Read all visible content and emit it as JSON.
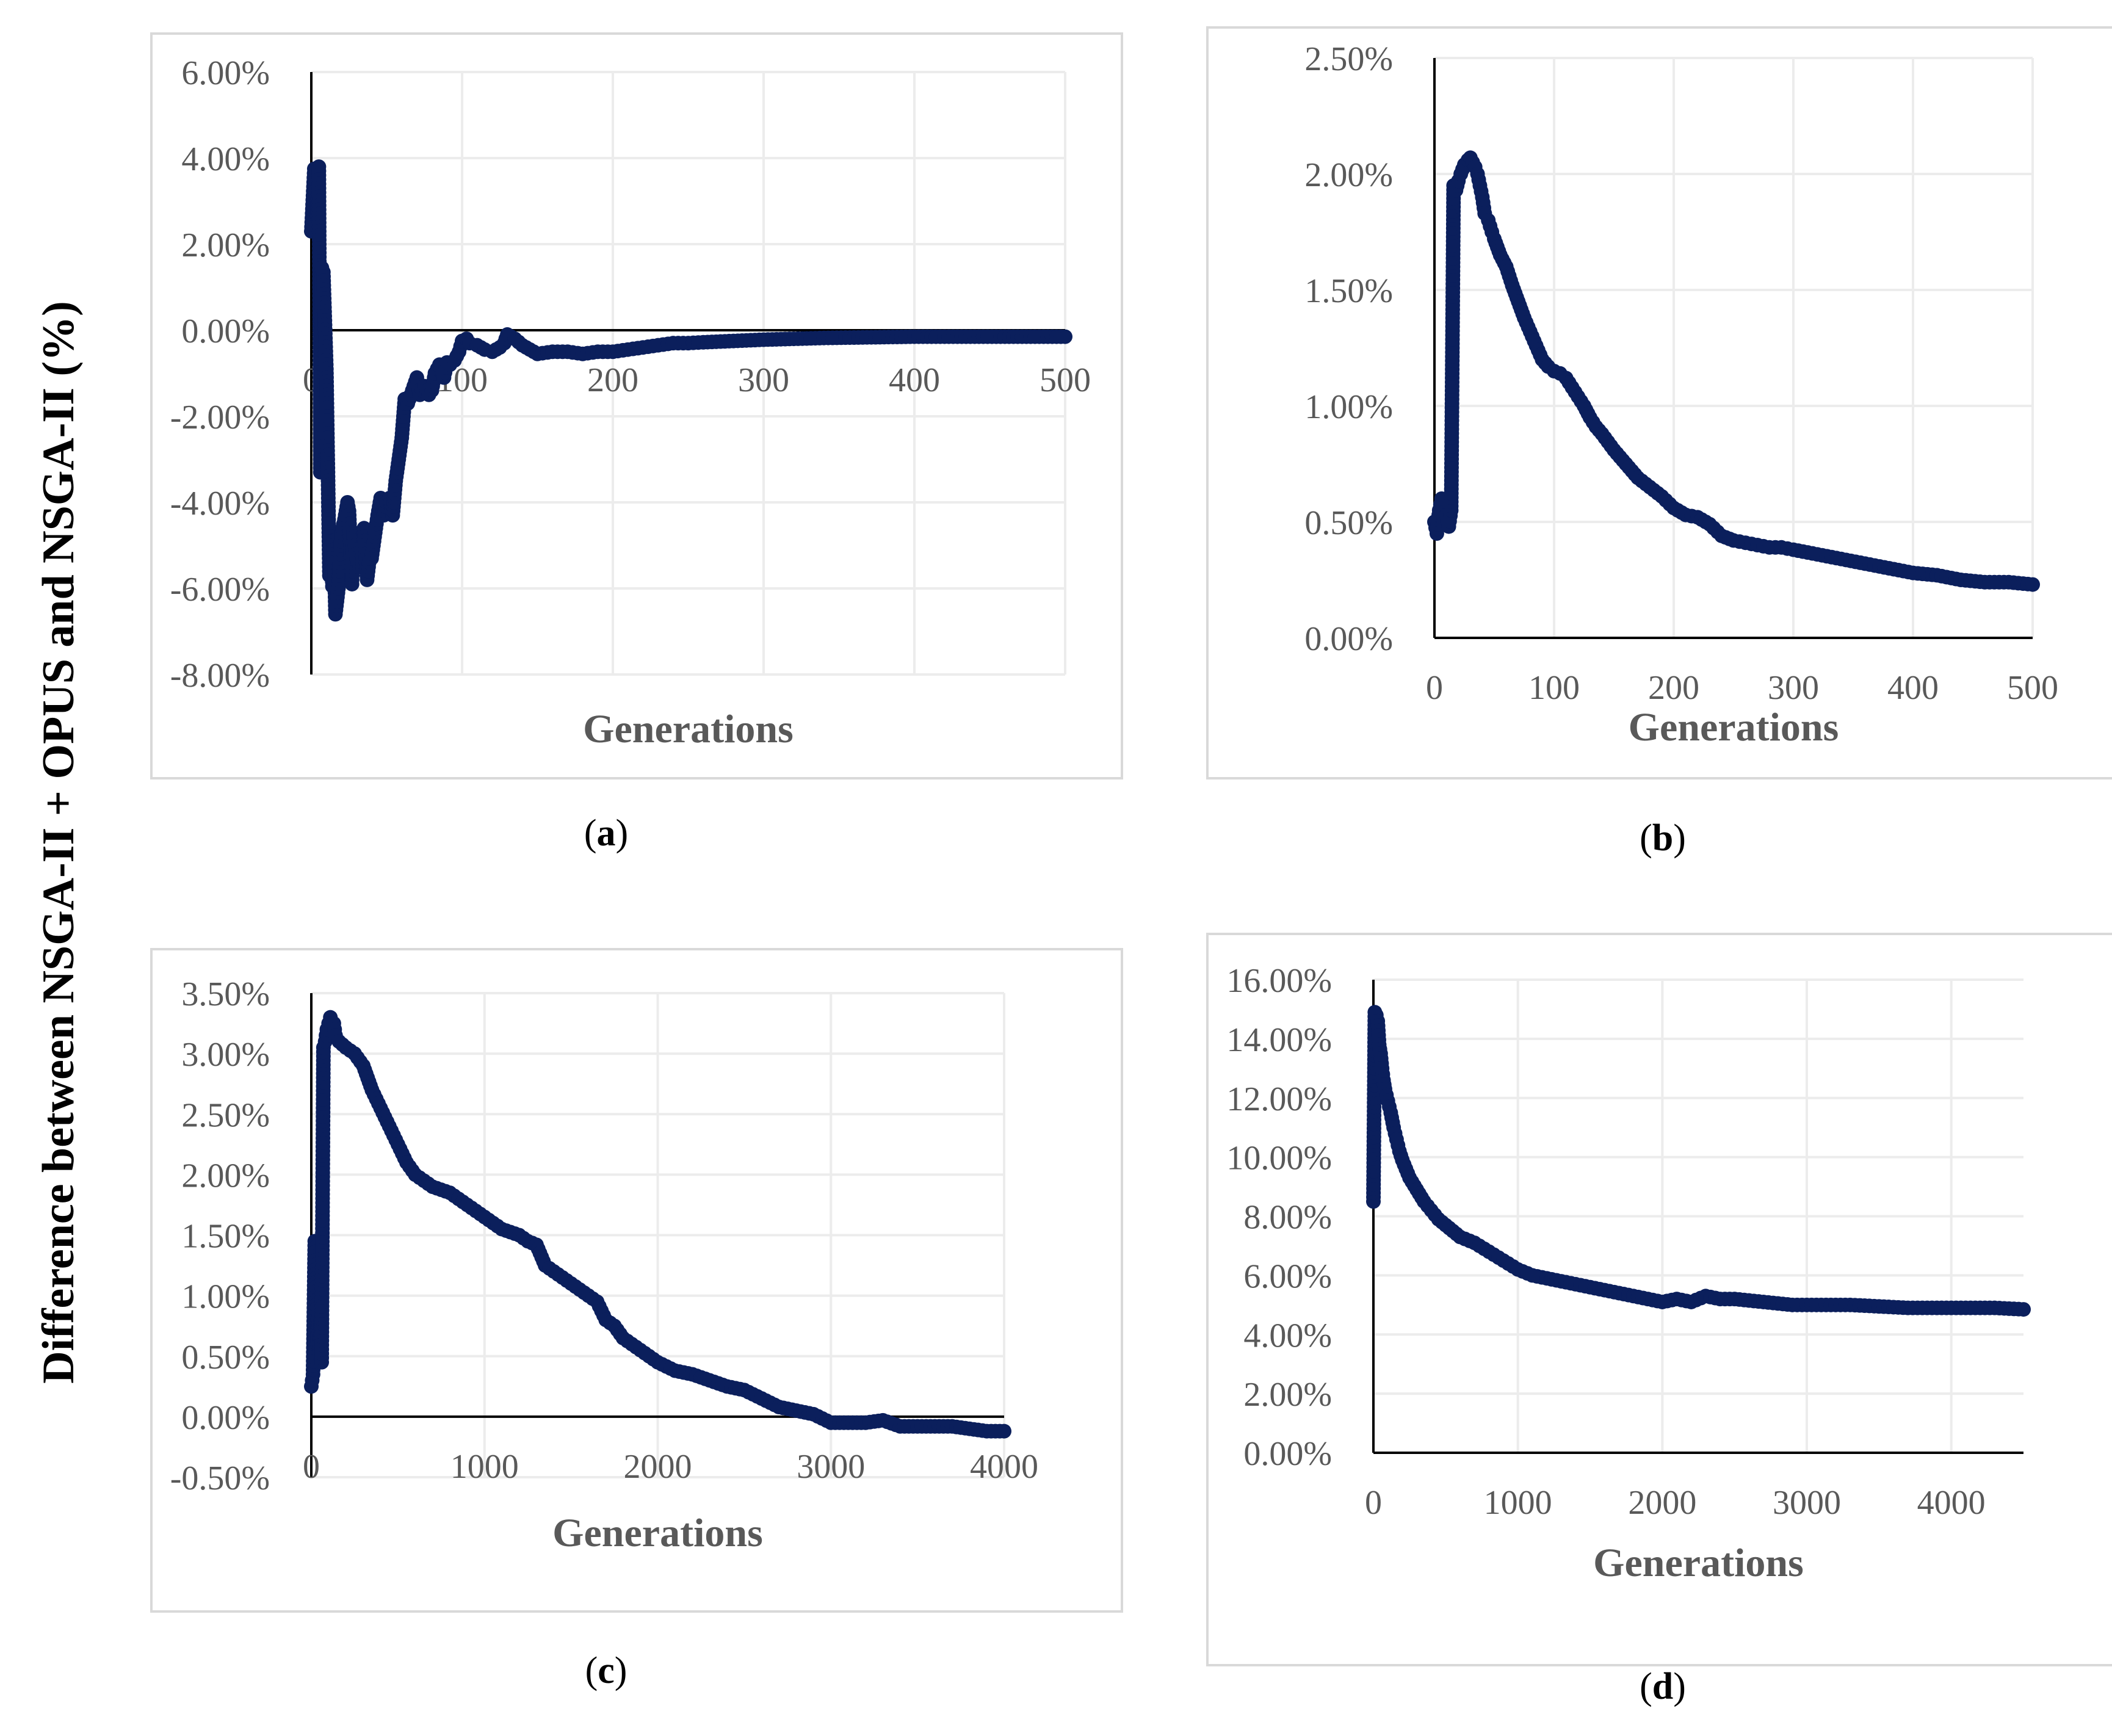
{
  "ylabel": "Difference between NSGA-II + OPUS and NSGA-II (%)",
  "colors": {
    "marker": "#0b1f5c",
    "axis": "#000000",
    "grid": "#ececec",
    "frame": "#d9d9d9",
    "tick_text": "#595959"
  },
  "chart_data": [
    {
      "id": "a",
      "type": "scatter",
      "caption_letter": "a",
      "xlabel": "Generations",
      "xlim": [
        0,
        500
      ],
      "xticks": [
        0,
        100,
        200,
        300,
        400,
        500
      ],
      "xtick_labels": [
        "0",
        "100",
        "200",
        "300",
        "400",
        "500"
      ],
      "ylim": [
        -8,
        6
      ],
      "yticks": [
        -8,
        -6,
        -4,
        -2,
        0,
        2,
        4,
        6
      ],
      "ytick_labels": [
        "-8.00%",
        "-6.00%",
        "-4.00%",
        "-2.00%",
        "0.00%",
        "2.00%",
        "4.00%",
        "6.00%"
      ],
      "x_labels_at_zero": true,
      "grid": true,
      "series": [
        {
          "name": "difference",
          "x": [
            0,
            2,
            4,
            5,
            6,
            7,
            8,
            10,
            11,
            12,
            13,
            14,
            15,
            16,
            18,
            20,
            22,
            24,
            25,
            27,
            28,
            30,
            32,
            34,
            35,
            37,
            39,
            40,
            42,
            44,
            46,
            48,
            50,
            52,
            54,
            56,
            58,
            60,
            62,
            64,
            66,
            68,
            70,
            72,
            75,
            78,
            80,
            82,
            85,
            88,
            90,
            92,
            95,
            98,
            100,
            103,
            105,
            110,
            115,
            120,
            125,
            128,
            130,
            135,
            140,
            145,
            150,
            160,
            170,
            180,
            190,
            200,
            210,
            220,
            230,
            240,
            250,
            260,
            280,
            300,
            320,
            340,
            360,
            380,
            400,
            420,
            440,
            460,
            480,
            500
          ],
          "y": [
            2.3,
            3.75,
            2.65,
            3.8,
            -3.3,
            1.45,
            1.35,
            -0.9,
            -3.2,
            -5.7,
            -4.8,
            -5.95,
            -4.9,
            -6.6,
            -6.0,
            -4.7,
            -4.4,
            -4.0,
            -4.2,
            -5.9,
            -4.7,
            -5.3,
            -5.5,
            -5.5,
            -4.6,
            -5.8,
            -5.2,
            -5.3,
            -4.8,
            -4.3,
            -3.9,
            -4.3,
            -4.0,
            -3.9,
            -4.3,
            -3.5,
            -3.0,
            -2.5,
            -1.6,
            -1.7,
            -1.5,
            -1.3,
            -1.1,
            -1.5,
            -1.3,
            -1.5,
            -1.4,
            -1.0,
            -0.8,
            -1.1,
            -0.75,
            -0.8,
            -0.7,
            -0.5,
            -0.25,
            -0.2,
            -0.3,
            -0.35,
            -0.45,
            -0.5,
            -0.4,
            -0.3,
            -0.1,
            -0.2,
            -0.35,
            -0.45,
            -0.55,
            -0.5,
            -0.5,
            -0.55,
            -0.5,
            -0.5,
            -0.45,
            -0.4,
            -0.35,
            -0.3,
            -0.3,
            -0.28,
            -0.25,
            -0.22,
            -0.2,
            -0.18,
            -0.17,
            -0.16,
            -0.15,
            -0.15,
            -0.15,
            -0.15,
            -0.15,
            -0.15
          ]
        }
      ]
    },
    {
      "id": "b",
      "type": "scatter",
      "caption_letter": "b",
      "xlabel": "Generations",
      "xlim": [
        0,
        500
      ],
      "xticks": [
        0,
        100,
        200,
        300,
        400,
        500
      ],
      "xtick_labels": [
        "0",
        "100",
        "200",
        "300",
        "400",
        "500"
      ],
      "ylim": [
        0,
        2.5
      ],
      "yticks": [
        0,
        0.5,
        1,
        1.5,
        2,
        2.5
      ],
      "ytick_labels": [
        "0.00%",
        "0.50%",
        "1.00%",
        "1.50%",
        "2.00%",
        "2.50%"
      ],
      "x_labels_at_zero": false,
      "grid": true,
      "series": [
        {
          "name": "difference",
          "x": [
            0,
            2,
            4,
            6,
            8,
            10,
            12,
            14,
            16,
            18,
            20,
            22,
            25,
            28,
            30,
            32,
            34,
            36,
            38,
            40,
            42,
            45,
            48,
            50,
            55,
            60,
            65,
            70,
            75,
            80,
            85,
            90,
            95,
            100,
            105,
            110,
            115,
            120,
            125,
            130,
            135,
            140,
            150,
            160,
            170,
            180,
            190,
            200,
            210,
            220,
            230,
            240,
            250,
            260,
            270,
            280,
            290,
            300,
            320,
            340,
            360,
            380,
            400,
            420,
            440,
            460,
            480,
            500
          ],
          "y": [
            0.5,
            0.45,
            0.55,
            0.6,
            0.5,
            0.53,
            0.48,
            0.55,
            1.95,
            1.93,
            1.97,
            2.0,
            2.04,
            2.06,
            2.07,
            2.05,
            2.03,
            2.0,
            1.95,
            1.9,
            1.83,
            1.8,
            1.75,
            1.72,
            1.65,
            1.6,
            1.52,
            1.45,
            1.38,
            1.32,
            1.26,
            1.2,
            1.17,
            1.15,
            1.14,
            1.12,
            1.08,
            1.04,
            1.0,
            0.95,
            0.91,
            0.88,
            0.81,
            0.75,
            0.69,
            0.65,
            0.61,
            0.56,
            0.53,
            0.52,
            0.49,
            0.44,
            0.42,
            0.41,
            0.4,
            0.39,
            0.39,
            0.38,
            0.36,
            0.34,
            0.32,
            0.3,
            0.28,
            0.27,
            0.25,
            0.24,
            0.24,
            0.23
          ]
        }
      ]
    },
    {
      "id": "c",
      "type": "scatter",
      "caption_letter": "c",
      "xlabel": "Generations",
      "xlim": [
        0,
        4000
      ],
      "xticks": [
        0,
        1000,
        2000,
        3000,
        4000
      ],
      "xtick_labels": [
        "0",
        "1000",
        "2000",
        "3000",
        "4000"
      ],
      "ylim": [
        -0.5,
        3.5
      ],
      "yticks": [
        -0.5,
        0,
        0.5,
        1,
        1.5,
        2,
        2.5,
        3,
        3.5
      ],
      "ytick_labels": [
        "-0.50%",
        "0.00%",
        "0.50%",
        "1.00%",
        "1.50%",
        "2.00%",
        "2.50%",
        "3.00%",
        "3.50%"
      ],
      "x_labels_at_zero": true,
      "grid": true,
      "series": [
        {
          "name": "difference",
          "x": [
            0,
            10,
            15,
            20,
            25,
            30,
            35,
            40,
            45,
            50,
            55,
            60,
            70,
            80,
            90,
            100,
            110,
            120,
            130,
            140,
            160,
            200,
            250,
            300,
            350,
            400,
            450,
            500,
            550,
            600,
            650,
            700,
            800,
            900,
            1000,
            1100,
            1200,
            1250,
            1300,
            1350,
            1400,
            1450,
            1500,
            1550,
            1600,
            1650,
            1700,
            1750,
            1800,
            1850,
            1900,
            2000,
            2100,
            2200,
            2300,
            2400,
            2500,
            2600,
            2700,
            2800,
            2900,
            3000,
            3100,
            3200,
            3300,
            3400,
            3500,
            3600,
            3700,
            3800,
            3900,
            4000
          ],
          "y": [
            0.25,
            0.35,
            0.9,
            1.45,
            1.4,
            1.0,
            0.6,
            0.9,
            0.7,
            0.5,
            0.8,
            0.45,
            3.05,
            3.1,
            3.2,
            3.25,
            3.3,
            3.2,
            3.25,
            3.15,
            3.1,
            3.05,
            3.0,
            2.9,
            2.7,
            2.55,
            2.4,
            2.25,
            2.1,
            2.0,
            1.95,
            1.9,
            1.85,
            1.75,
            1.65,
            1.55,
            1.5,
            1.45,
            1.42,
            1.25,
            1.2,
            1.15,
            1.1,
            1.05,
            1.0,
            0.95,
            0.8,
            0.75,
            0.65,
            0.6,
            0.55,
            0.45,
            0.38,
            0.35,
            0.3,
            0.25,
            0.22,
            0.15,
            0.08,
            0.05,
            0.02,
            -0.05,
            -0.05,
            -0.05,
            -0.03,
            -0.08,
            -0.08,
            -0.08,
            -0.08,
            -0.1,
            -0.12,
            -0.12
          ]
        }
      ]
    },
    {
      "id": "d",
      "type": "scatter",
      "caption_letter": "d",
      "xlabel": "Generations",
      "xlim": [
        0,
        4500
      ],
      "xticks": [
        0,
        1000,
        2000,
        3000,
        4000
      ],
      "xtick_labels": [
        "0",
        "1000",
        "2000",
        "3000",
        "4000"
      ],
      "ylim": [
        0,
        16
      ],
      "yticks": [
        0,
        2,
        4,
        6,
        8,
        10,
        12,
        14,
        16
      ],
      "ytick_labels": [
        "0.00%",
        "2.00%",
        "4.00%",
        "6.00%",
        "8.00%",
        "10.00%",
        "12.00%",
        "14.00%",
        "16.00%"
      ],
      "x_labels_at_zero": false,
      "grid": true,
      "series": [
        {
          "name": "difference",
          "x": [
            0,
            10,
            20,
            30,
            40,
            50,
            60,
            70,
            80,
            100,
            120,
            140,
            160,
            180,
            200,
            250,
            300,
            350,
            400,
            450,
            500,
            600,
            700,
            800,
            900,
            1000,
            1100,
            1200,
            1300,
            1400,
            1500,
            1600,
            1700,
            1800,
            1900,
            2000,
            2100,
            2200,
            2300,
            2400,
            2500,
            2700,
            2900,
            3100,
            3300,
            3500,
            3700,
            3900,
            4100,
            4300,
            4500
          ],
          "y": [
            8.5,
            14.9,
            14.8,
            14.6,
            13.8,
            13.5,
            13.0,
            12.6,
            12.3,
            11.9,
            11.5,
            11.0,
            10.6,
            10.2,
            9.9,
            9.3,
            8.9,
            8.5,
            8.2,
            7.9,
            7.7,
            7.3,
            7.1,
            6.8,
            6.5,
            6.2,
            6.0,
            5.9,
            5.8,
            5.7,
            5.6,
            5.5,
            5.4,
            5.3,
            5.2,
            5.1,
            5.2,
            5.1,
            5.3,
            5.2,
            5.2,
            5.1,
            5.0,
            5.0,
            5.0,
            4.95,
            4.9,
            4.9,
            4.9,
            4.9,
            4.85
          ]
        }
      ]
    }
  ]
}
